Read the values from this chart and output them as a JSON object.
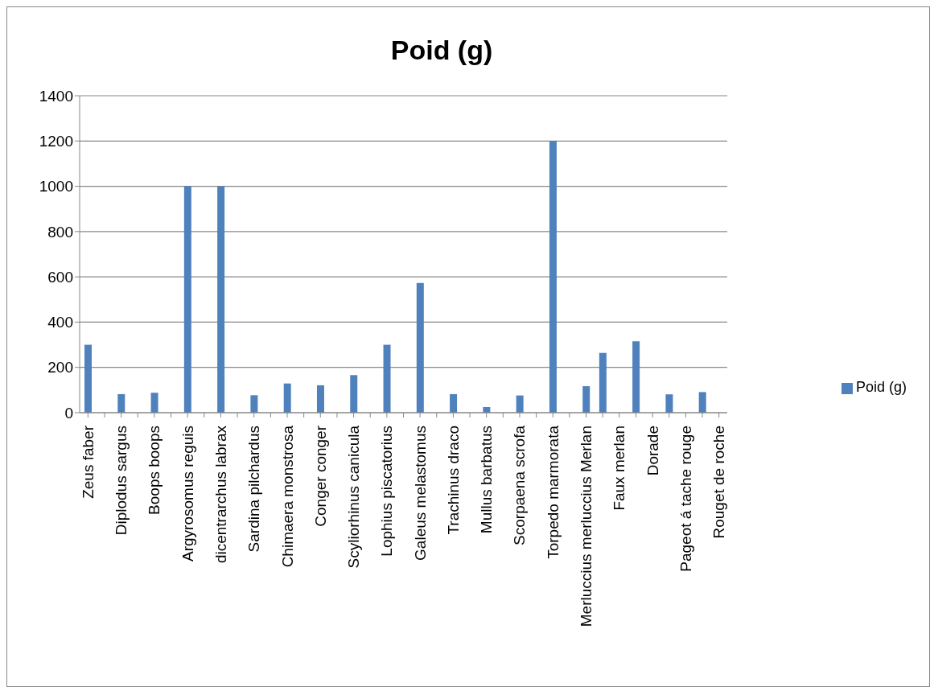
{
  "chart_data": {
    "type": "bar",
    "title": "Poid (g)",
    "categories": [
      "Zeus faber",
      null,
      "Diplodus sargus",
      null,
      "Boops boops",
      null,
      "Argyrosomus reguis",
      null,
      "dicentrarchus labrax",
      null,
      "Sardina pilchardus",
      null,
      "Chimaera monstrosa",
      null,
      "Conger conger",
      null,
      "Scyliorhinus canicula",
      null,
      "Lophius piscatorius",
      null,
      "Galeus melastomus",
      null,
      "Trachinus draco",
      null,
      "Mullus barbatus",
      null,
      "Scorpaena scrofa",
      null,
      "Torpedo marmorata",
      null,
      "Merluccius merluccius Merlan",
      null,
      "Faux merlan",
      null,
      "Dorade",
      null,
      "Pageot á tache rouge",
      null,
      "Rouget de roche"
    ],
    "series": [
      {
        "name": "Poid (g)",
        "color": "#4f81bd",
        "values": [
          300,
          null,
          82,
          null,
          88,
          null,
          1000,
          null,
          1000,
          null,
          77,
          null,
          129,
          null,
          121,
          null,
          166,
          null,
          300,
          null,
          573,
          null,
          82,
          null,
          25,
          null,
          76,
          null,
          1200,
          null,
          117,
          264,
          null,
          315,
          null,
          81,
          null,
          91,
          null
        ]
      }
    ],
    "ylim": [
      0,
      1400
    ],
    "yticks": [
      0,
      200,
      400,
      600,
      800,
      1000,
      1200,
      1400
    ],
    "grid": "y",
    "legend": "right"
  }
}
